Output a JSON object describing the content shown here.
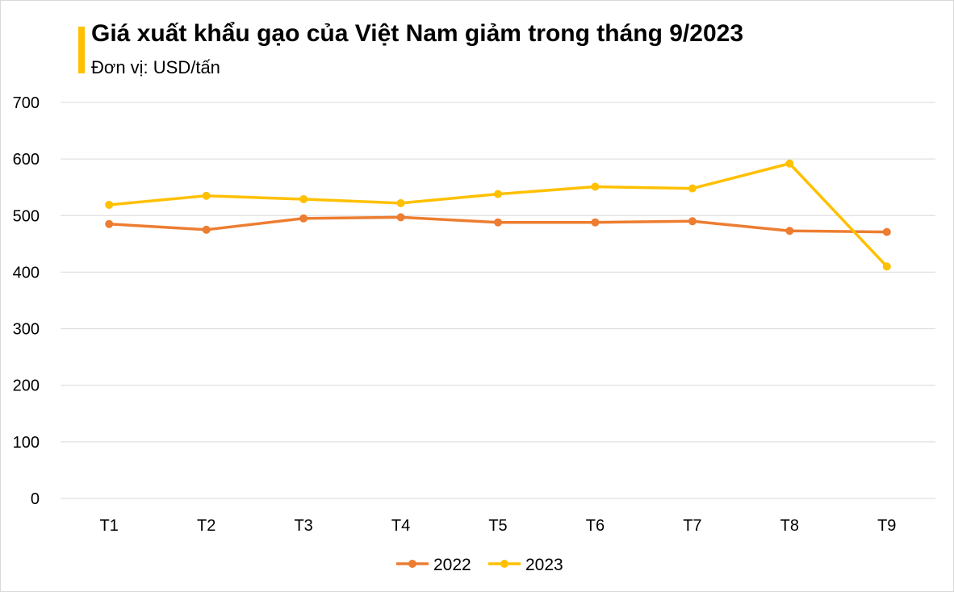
{
  "header": {
    "title": "Giá xuất khẩu gạo của Việt Nam giảm trong tháng 9/2023",
    "subtitle": "Đơn vị: USD/tấn"
  },
  "colors": {
    "accent": "#ffc000",
    "grid": "#d9d9d9"
  },
  "chart_data": {
    "type": "line",
    "title": "Giá xuất khẩu gạo của Việt Nam giảm trong tháng 9/2023",
    "subtitle": "Đơn vị: USD/tấn",
    "xlabel": "",
    "ylabel": "",
    "categories": [
      "T1",
      "T2",
      "T3",
      "T4",
      "T5",
      "T6",
      "T7",
      "T8",
      "T9"
    ],
    "ylim": [
      0,
      700
    ],
    "yticks": [
      0,
      100,
      200,
      300,
      400,
      500,
      600,
      700
    ],
    "grid": true,
    "legend_position": "bottom",
    "series": [
      {
        "name": "2022",
        "color": "#ed7d31",
        "values": [
          485,
          475,
          495,
          497,
          488,
          488,
          490,
          473,
          471
        ]
      },
      {
        "name": "2023",
        "color": "#ffc000",
        "values": [
          519,
          535,
          529,
          522,
          538,
          551,
          548,
          592,
          410
        ]
      }
    ]
  }
}
